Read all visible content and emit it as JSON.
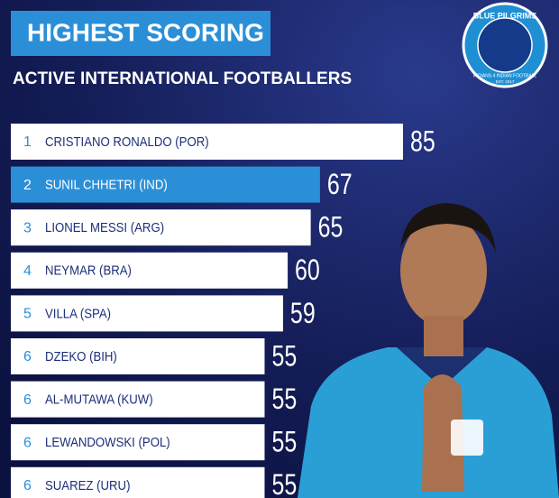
{
  "chart_data": {
    "type": "bar",
    "orientation": "horizontal",
    "title": "HIGHEST SCORING",
    "subtitle": "ACTIVE INTERNATIONAL FOOTBALLERS",
    "ranks": [
      1,
      2,
      3,
      4,
      5,
      6,
      6,
      6,
      6
    ],
    "categories": [
      "CRISTIANO RONALDO (POR)",
      "SUNIL CHHETRI (IND)",
      "LIONEL MESSI (ARG)",
      "NEYMAR (BRA)",
      "VILLA (SPA)",
      "DZEKO (BIH)",
      "AL-MUTAWA (KUW)",
      "LEWANDOWSKI (POL)",
      "SUAREZ (URU)"
    ],
    "values": [
      85,
      67,
      65,
      60,
      59,
      55,
      55,
      55,
      55
    ],
    "colors": [
      "#ffffff",
      "#2b8fd8",
      "#ffffff",
      "#ffffff",
      "#ffffff",
      "#ffffff",
      "#ffffff",
      "#ffffff",
      "#ffffff"
    ]
  },
  "logo": {
    "name": "BLUE PILGRIMS",
    "tagline": "INDIANS 4 INDIAN FOOTBALL",
    "est": "EST. 2017"
  }
}
